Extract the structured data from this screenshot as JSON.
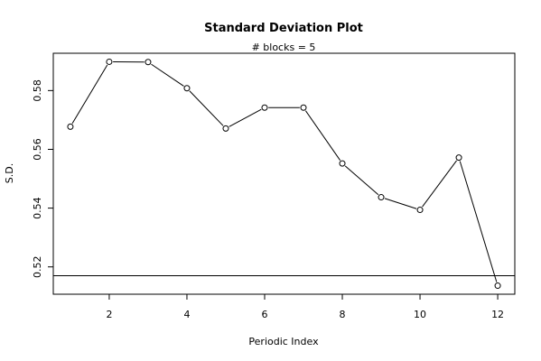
{
  "chart_data": {
    "type": "line",
    "title": "Standard Deviation Plot",
    "subtitle": "# blocks =  5",
    "xlabel": "Periodic Index",
    "ylabel": "S.D.",
    "x": [
      1,
      2,
      3,
      4,
      5,
      6,
      7,
      8,
      9,
      10,
      11,
      12
    ],
    "y": [
      0.5677,
      0.5898,
      0.5897,
      0.5808,
      0.5671,
      0.5742,
      0.5742,
      0.5552,
      0.5437,
      0.5394,
      0.5572,
      0.5136
    ],
    "xlim": [
      0.56,
      12.44
    ],
    "ylim": [
      0.5107,
      0.5927
    ],
    "xticks": [
      2,
      4,
      6,
      8,
      10,
      12
    ],
    "yticks": [
      0.52,
      0.54,
      0.56,
      0.58
    ],
    "ytick_labels": [
      "0.52",
      "0.54",
      "0.56",
      "0.58"
    ],
    "hline": 0.517,
    "markers": "open-circle",
    "grid": false
  }
}
